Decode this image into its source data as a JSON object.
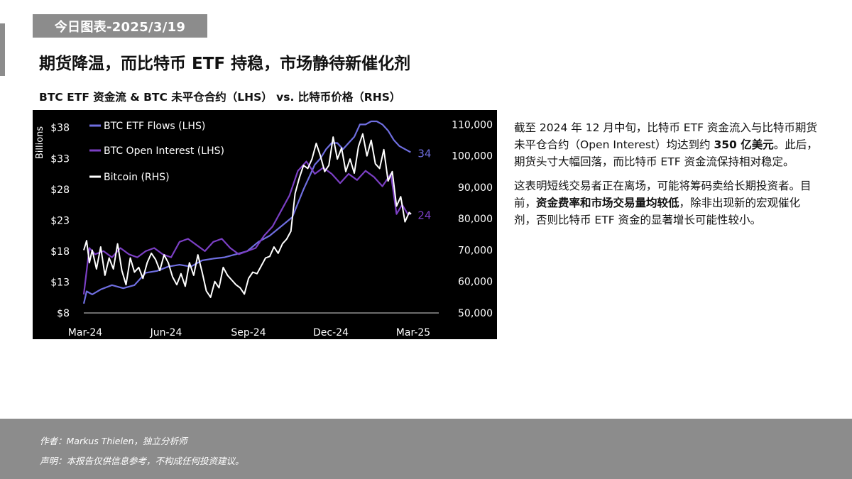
{
  "header": {
    "date_tag": "今日图表-2025/3/19",
    "headline": "期货降温，而比特币 ETF 持稳，市场静待新催化剂"
  },
  "chart_data": {
    "type": "line",
    "title": "BTC ETF 资金流 & BTC 未平仓合约（LHS） vs. 比特币价格（RHS）",
    "left_axis_label": "Billions",
    "left_axis": {
      "ticks": [
        8,
        13,
        18,
        23,
        28,
        33,
        38
      ],
      "tick_labels": [
        "$8",
        "$13",
        "$18",
        "$23",
        "$28",
        "$33",
        "$38"
      ],
      "range": [
        8,
        39
      ]
    },
    "right_axis": {
      "ticks": [
        50000,
        60000,
        70000,
        80000,
        90000,
        100000,
        110000
      ],
      "tick_labels": [
        "50,000",
        "60,000",
        "70,000",
        "80,000",
        "90,000",
        "100,000",
        "110,000"
      ],
      "range": [
        50000,
        111000
      ]
    },
    "x_axis": {
      "tick_labels": [
        "Mar-24",
        "Jun-24",
        "Sep-24",
        "Dec-24",
        "Mar-25"
      ]
    },
    "x_range": [
      0,
      12.6
    ],
    "background": "#000000",
    "grid": false,
    "legend_position": "top-left",
    "series": [
      {
        "name": "BTC ETF Flows (LHS)",
        "axis": "left",
        "color": "#6f6ee0",
        "end_label": "34",
        "x": [
          0,
          0.1,
          0.3,
          0.6,
          1.0,
          1.4,
          1.8,
          2.2,
          2.6,
          3.0,
          3.4,
          3.8,
          4.2,
          4.6,
          5.0,
          5.4,
          5.8,
          6.2,
          6.6,
          7.0,
          7.4,
          7.8,
          8.0,
          8.2,
          8.4,
          8.6,
          8.8,
          9.0,
          9.2,
          9.4,
          9.6,
          9.8,
          10.0,
          10.2,
          10.4,
          10.6,
          10.8,
          11.0,
          11.2,
          11.4,
          11.6
        ],
        "values": [
          9.5,
          11.5,
          11.0,
          11.8,
          12.5,
          12.0,
          12.5,
          14.5,
          14.8,
          15.5,
          15.8,
          15.5,
          16.5,
          16.8,
          17.0,
          17.5,
          18.0,
          19.5,
          20.5,
          22.0,
          23.5,
          28.0,
          30.0,
          32.0,
          33.0,
          34.5,
          35.5,
          35.5,
          34.5,
          35.5,
          36.5,
          38.5,
          38.5,
          39.0,
          39.0,
          38.5,
          37.5,
          36.0,
          35.0,
          34.5,
          34.0
        ]
      },
      {
        "name": "BTC Open Interest (LHS)",
        "axis": "left",
        "color": "#7b3fc4",
        "end_label": "24",
        "x": [
          0,
          0.2,
          0.4,
          0.7,
          1.0,
          1.3,
          1.6,
          1.9,
          2.2,
          2.5,
          2.8,
          3.1,
          3.4,
          3.7,
          4.0,
          4.3,
          4.6,
          4.9,
          5.2,
          5.5,
          5.8,
          6.1,
          6.4,
          6.7,
          7.0,
          7.3,
          7.6,
          7.9,
          8.2,
          8.5,
          8.8,
          9.1,
          9.4,
          9.7,
          10.0,
          10.3,
          10.6,
          10.9,
          11.1,
          11.3,
          11.5,
          11.6
        ],
        "values": [
          11.0,
          18.5,
          17.5,
          18.0,
          17.0,
          18.5,
          17.5,
          17.0,
          18.0,
          18.5,
          17.5,
          17.0,
          19.5,
          20.0,
          19.0,
          18.0,
          19.5,
          20.0,
          18.5,
          17.5,
          18.0,
          18.5,
          20.5,
          22.0,
          24.5,
          27.0,
          31.0,
          32.5,
          30.5,
          31.5,
          30.5,
          29.0,
          30.5,
          29.5,
          31.0,
          30.0,
          28.5,
          30.5,
          24.0,
          25.5,
          24.0,
          24.0
        ]
      },
      {
        "name": "Bitcoin (RHS)",
        "axis": "right",
        "color": "#ffffff",
        "x": [
          0,
          0.1,
          0.2,
          0.3,
          0.45,
          0.6,
          0.75,
          0.9,
          1.05,
          1.2,
          1.35,
          1.5,
          1.65,
          1.8,
          1.95,
          2.1,
          2.25,
          2.4,
          2.55,
          2.7,
          2.85,
          3.0,
          3.15,
          3.3,
          3.45,
          3.6,
          3.75,
          3.9,
          4.05,
          4.2,
          4.35,
          4.5,
          4.65,
          4.8,
          4.95,
          5.1,
          5.25,
          5.4,
          5.55,
          5.7,
          5.85,
          6.0,
          6.15,
          6.3,
          6.45,
          6.6,
          6.75,
          6.9,
          7.05,
          7.2,
          7.35,
          7.5,
          7.65,
          7.8,
          7.95,
          8.1,
          8.25,
          8.4,
          8.55,
          8.7,
          8.85,
          9.0,
          9.15,
          9.3,
          9.45,
          9.6,
          9.75,
          9.9,
          10.05,
          10.2,
          10.35,
          10.5,
          10.65,
          10.8,
          10.95,
          11.1,
          11.25,
          11.4,
          11.55,
          11.62
        ],
        "values": [
          70000,
          73000,
          66000,
          70000,
          64000,
          71000,
          62000,
          67500,
          64000,
          72000,
          63500,
          59000,
          67500,
          63000,
          64500,
          61000,
          66000,
          69000,
          67000,
          63500,
          68500,
          66000,
          61500,
          59000,
          62500,
          58500,
          66000,
          62000,
          68500,
          63000,
          57000,
          55000,
          60000,
          58000,
          64500,
          62000,
          60500,
          59000,
          58000,
          56000,
          61000,
          63000,
          62500,
          65000,
          67500,
          68000,
          71000,
          69000,
          72000,
          73500,
          76000,
          88000,
          93000,
          97000,
          96000,
          99000,
          104000,
          100000,
          95000,
          97000,
          106000,
          99000,
          102500,
          95000,
          99000,
          94500,
          103000,
          107000,
          100000,
          105000,
          97500,
          96000,
          102000,
          92000,
          95000,
          84000,
          87000,
          79000,
          82000,
          81500
        ]
      }
    ]
  },
  "commentary": {
    "p1_a": "截至 2024 年 12 月中旬，比特币 ETF 资金流入与比特币期货未平仓合约（Open Interest）均达到约 ",
    "p1_bold": "350 亿美元",
    "p1_b": "。此后，期货头寸大幅回落，而比特币 ETF 资金流保持相对稳定。",
    "p2_a": "这表明短线交易者正在离场，可能将筹码卖给长期投资者。目前，",
    "p2_bold": "资金费率和市场交易量均较低",
    "p2_b": "，除非出现新的宏观催化剂，否则比特币 ETF 资金的显著增长可能性较小。"
  },
  "footer": {
    "author": "作者：Markus Thielen，独立分析师",
    "disclaimer": "声明：本报告仅供信息参考，不构成任何投资建议。"
  }
}
